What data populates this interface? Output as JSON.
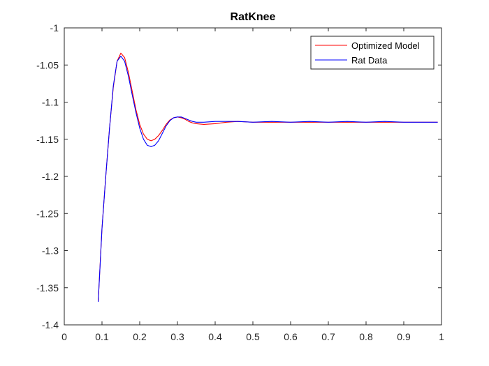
{
  "chart_data": {
    "type": "line",
    "title": "RatKnee",
    "xlabel": "",
    "ylabel": "",
    "xlim": [
      0,
      1
    ],
    "ylim": [
      -1.4,
      -1
    ],
    "xticks": [
      0,
      0.1,
      0.2,
      0.3,
      0.4,
      0.5,
      0.6,
      0.7,
      0.8,
      0.9,
      1
    ],
    "xtick_labels": [
      "0",
      "0.1",
      "0.2",
      "0.3",
      "0.4",
      "0.5",
      "0.6",
      "0.7",
      "0.8",
      "0.9",
      "1"
    ],
    "yticks": [
      -1,
      -1.05,
      -1.1,
      -1.15,
      -1.2,
      -1.25,
      -1.3,
      -1.35,
      -1.4
    ],
    "ytick_labels": [
      "-1",
      "-1.05",
      "-1.1",
      "-1.15",
      "-1.2",
      "-1.25",
      "-1.3",
      "-1.35",
      "-1.4"
    ],
    "grid": false,
    "legend_position": "top-right",
    "series": [
      {
        "name": "Optimized Model",
        "color": "#ff0000",
        "x": [
          0.09,
          0.1,
          0.11,
          0.12,
          0.13,
          0.14,
          0.15,
          0.16,
          0.17,
          0.18,
          0.19,
          0.2,
          0.21,
          0.22,
          0.23,
          0.24,
          0.25,
          0.26,
          0.27,
          0.28,
          0.29,
          0.3,
          0.31,
          0.32,
          0.33,
          0.34,
          0.35,
          0.37,
          0.4,
          0.43,
          0.46,
          0.5,
          0.55,
          0.6,
          0.65,
          0.7,
          0.75,
          0.8,
          0.85,
          0.9,
          0.95,
          0.99
        ],
        "y": [
          -1.368,
          -1.27,
          -1.2,
          -1.135,
          -1.08,
          -1.045,
          -1.034,
          -1.04,
          -1.06,
          -1.085,
          -1.11,
          -1.13,
          -1.143,
          -1.15,
          -1.152,
          -1.15,
          -1.145,
          -1.138,
          -1.13,
          -1.124,
          -1.121,
          -1.12,
          -1.121,
          -1.123,
          -1.126,
          -1.128,
          -1.129,
          -1.13,
          -1.129,
          -1.127,
          -1.126,
          -1.127,
          -1.127,
          -1.127,
          -1.127,
          -1.127,
          -1.127,
          -1.127,
          -1.127,
          -1.127,
          -1.127,
          -1.127
        ]
      },
      {
        "name": "Rat Data",
        "color": "#0000ff",
        "x": [
          0.09,
          0.1,
          0.11,
          0.12,
          0.13,
          0.14,
          0.15,
          0.16,
          0.17,
          0.18,
          0.19,
          0.2,
          0.21,
          0.22,
          0.23,
          0.24,
          0.25,
          0.26,
          0.27,
          0.28,
          0.29,
          0.3,
          0.31,
          0.32,
          0.33,
          0.34,
          0.35,
          0.37,
          0.4,
          0.43,
          0.46,
          0.5,
          0.55,
          0.6,
          0.65,
          0.7,
          0.75,
          0.8,
          0.85,
          0.9,
          0.95,
          0.99
        ],
        "y": [
          -1.369,
          -1.27,
          -1.2,
          -1.135,
          -1.078,
          -1.045,
          -1.038,
          -1.045,
          -1.065,
          -1.09,
          -1.114,
          -1.135,
          -1.15,
          -1.158,
          -1.16,
          -1.158,
          -1.152,
          -1.142,
          -1.132,
          -1.125,
          -1.121,
          -1.12,
          -1.12,
          -1.122,
          -1.124,
          -1.126,
          -1.127,
          -1.127,
          -1.126,
          -1.126,
          -1.126,
          -1.127,
          -1.126,
          -1.127,
          -1.126,
          -1.127,
          -1.126,
          -1.127,
          -1.126,
          -1.127,
          -1.127,
          -1.127
        ]
      }
    ]
  }
}
